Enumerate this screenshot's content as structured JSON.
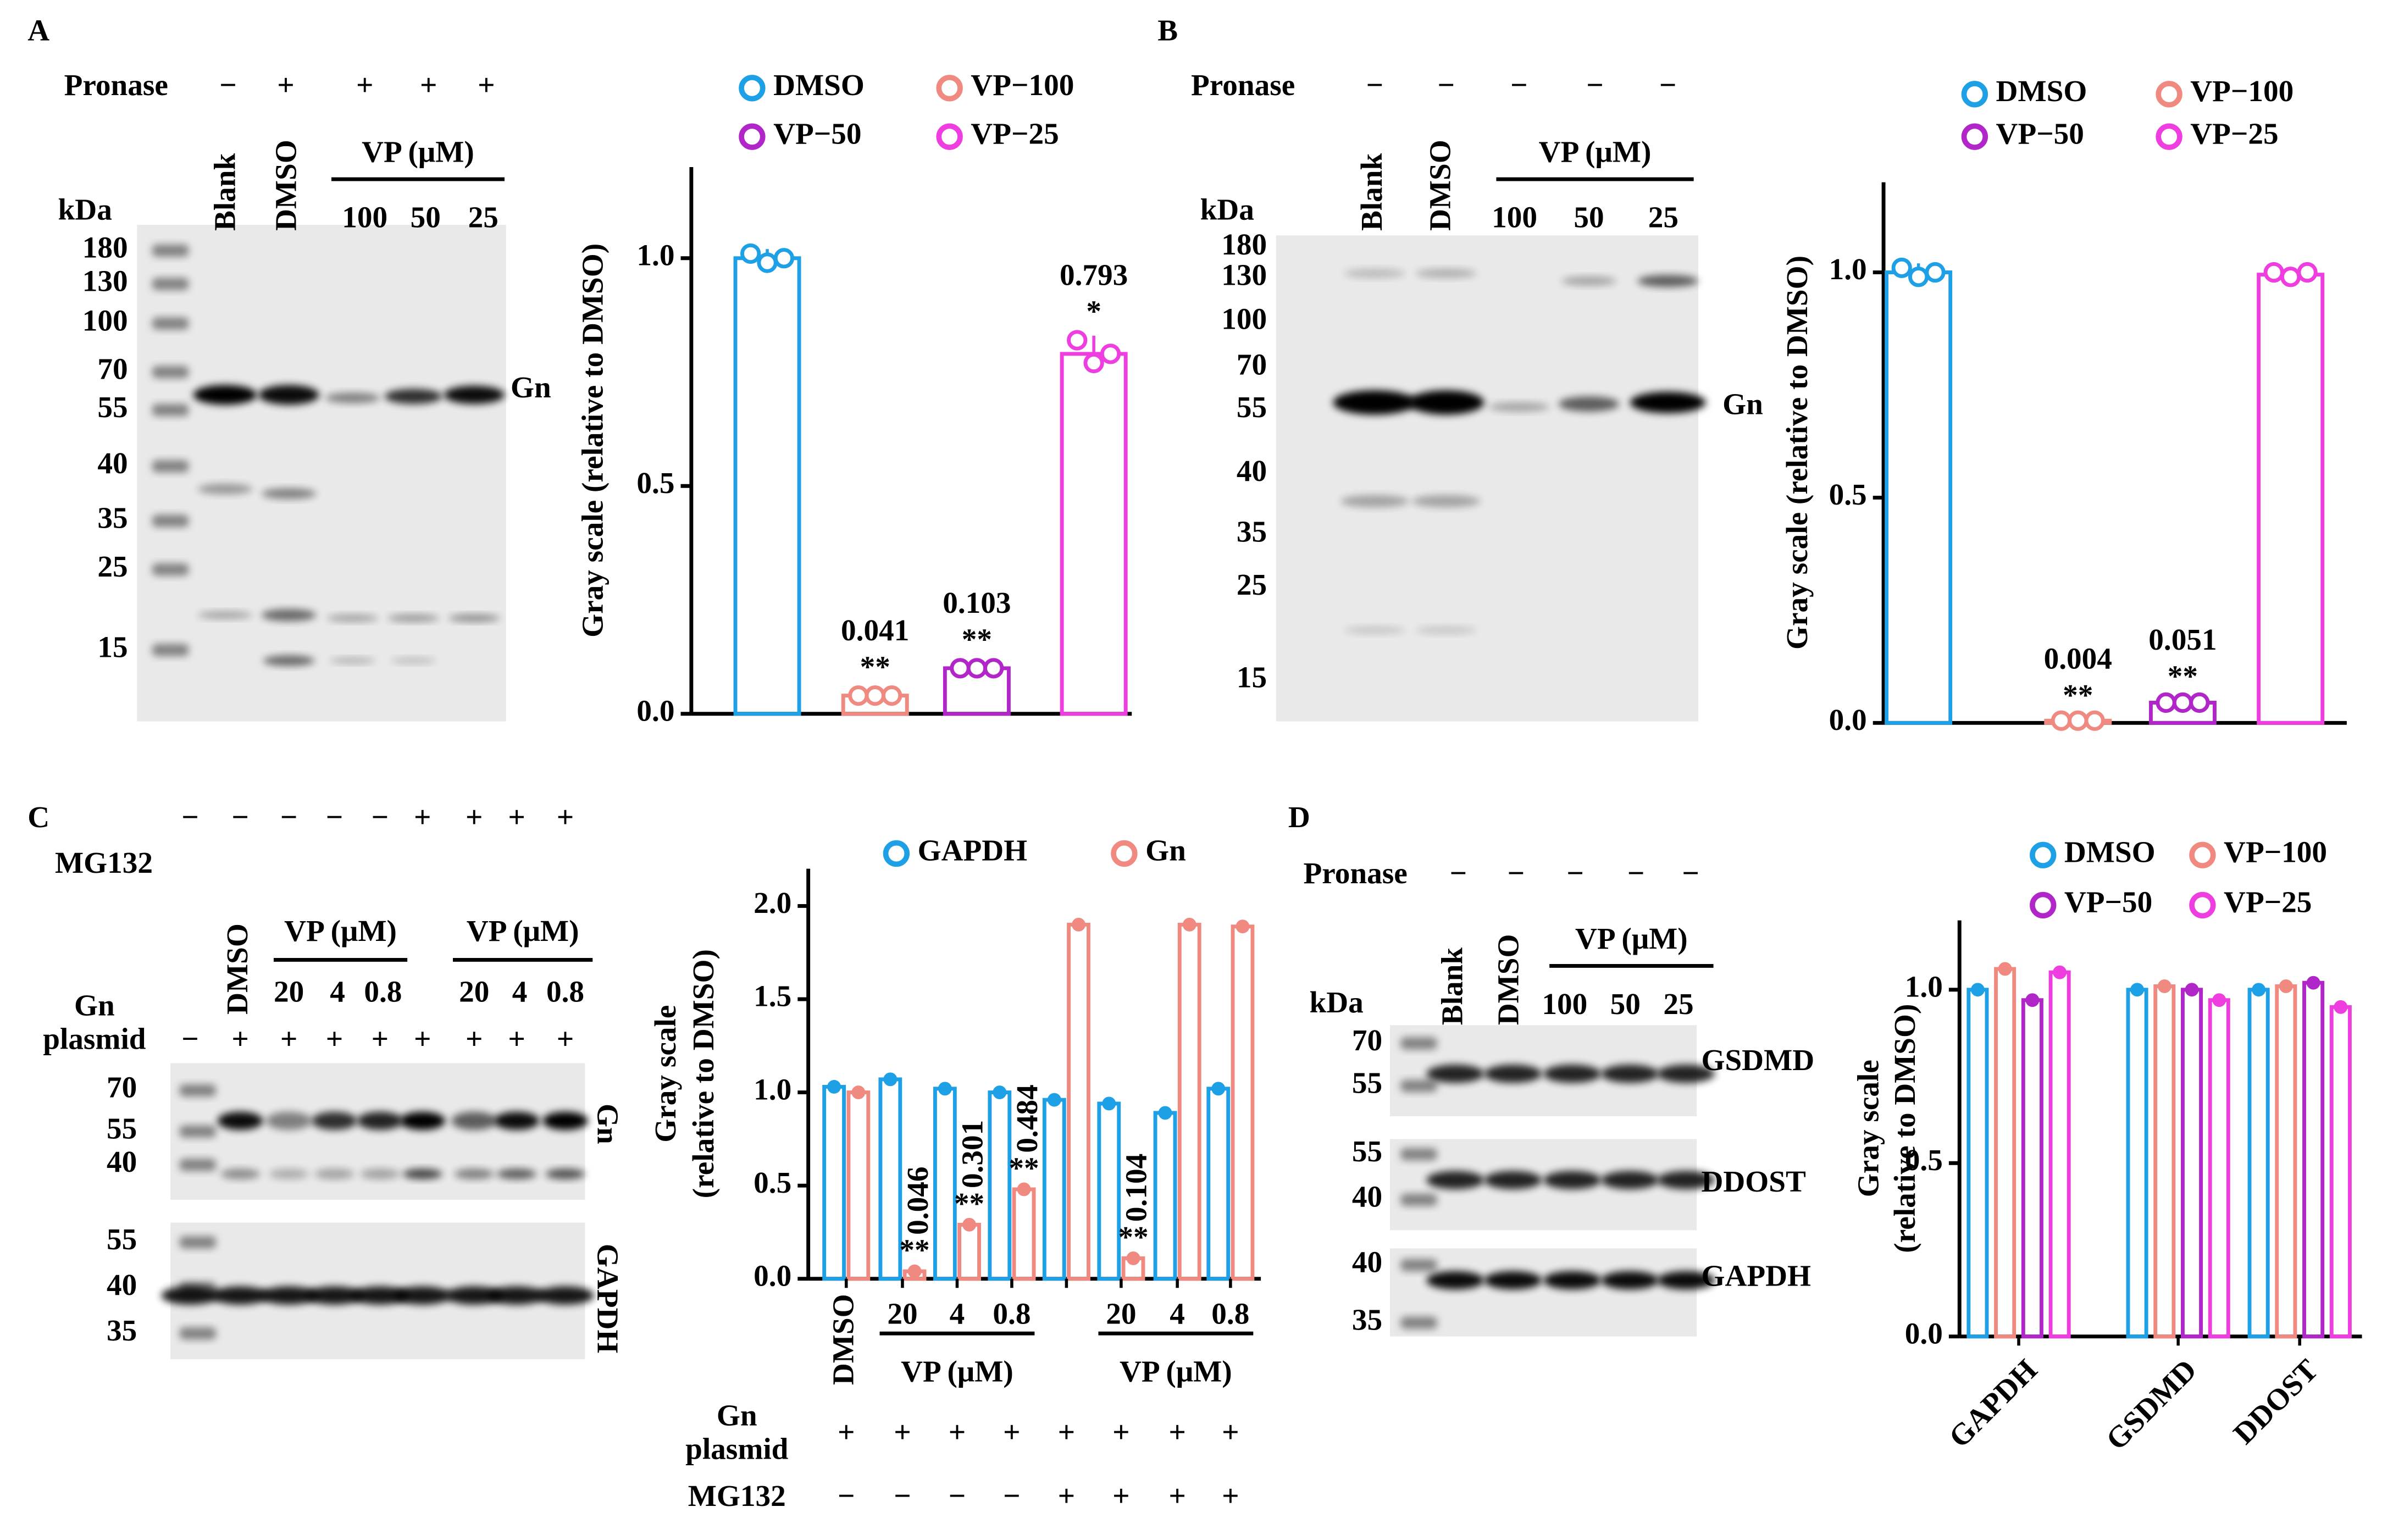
{
  "figure": {
    "panel_labels": [
      "A",
      "B",
      "C",
      "D"
    ],
    "A": {
      "pronase_label": "Pronase",
      "pronase": [
        "−",
        "+",
        "+",
        "+",
        "+"
      ],
      "lanes": [
        "Blank",
        "DMSO"
      ],
      "group": "VP (μM)",
      "doses": [
        "100",
        "50",
        "25"
      ],
      "unit": "kDa",
      "markers": [
        "180",
        "130",
        "100",
        "70",
        "55",
        "40",
        "35",
        "25",
        "15"
      ],
      "band": "Gn"
    },
    "B": {
      "pronase_label": "Pronase",
      "pronase": [
        "−",
        "−",
        "−",
        "−",
        "−"
      ],
      "lanes": [
        "Blank",
        "DMSO"
      ],
      "group": "VP (μM)",
      "doses": [
        "100",
        "50",
        "25"
      ],
      "unit": "kDa",
      "markers": [
        "180",
        "130",
        "100",
        "70",
        "55",
        "40",
        "35",
        "25",
        "15"
      ],
      "band": "Gn"
    },
    "C": {
      "mg132_label": "MG132",
      "mg132": [
        "−",
        "−",
        "−",
        "−",
        "−",
        "+",
        "+",
        "+",
        "+"
      ],
      "plasmid_label": [
        "Gn",
        "plasmid"
      ],
      "plasmid": [
        "−",
        "+",
        "+",
        "+",
        "+",
        "+",
        "+",
        "+",
        "+"
      ],
      "lane": "DMSO",
      "groups": [
        "VP (μM)",
        "VP (μM)"
      ],
      "doses": [
        "20",
        "4",
        "0.8",
        "20",
        "4",
        "0.8"
      ],
      "blots": [
        {
          "markers": [
            "70",
            "55",
            "40"
          ],
          "label": "Gn"
        },
        {
          "markers": [
            "55",
            "40",
            "35"
          ],
          "label": "GAPDH"
        }
      ]
    },
    "D": {
      "pronase_label": "Pronase",
      "pronase": [
        "−",
        "−",
        "−",
        "−",
        "−"
      ],
      "lanes": [
        "Blank",
        "DMSO"
      ],
      "group": "VP (μM)",
      "doses": [
        "100",
        "50",
        "25"
      ],
      "unit": "kDa",
      "blots": [
        {
          "markers": [
            "70",
            "55"
          ],
          "label": "GSDMD"
        },
        {
          "markers": [
            "55",
            "40"
          ],
          "label": "DDOST"
        },
        {
          "markers": [
            "40",
            "35"
          ],
          "label": "GAPDH"
        }
      ]
    }
  },
  "chart_data": [
    {
      "type": "bar",
      "ylabel": "Gray scale (relative to DMSO)",
      "categories": [
        "DMSO",
        "VP−100",
        "VP−50",
        "VP−25"
      ],
      "colors": [
        "#1ea0e6",
        "#f08a80",
        "#b026c8",
        "#ee3ee0"
      ],
      "values": [
        1.0,
        0.04,
        0.1,
        0.79
      ],
      "errors": [
        0.02,
        0.01,
        0.01,
        0.04
      ],
      "points": [
        [
          1.01,
          0.99,
          1.0
        ],
        [
          0.04,
          0.04,
          0.04
        ],
        [
          0.1,
          0.1,
          0.1
        ],
        [
          0.82,
          0.77,
          0.79
        ]
      ],
      "p_values": [
        null,
        "0.041",
        "0.103",
        "0.793"
      ],
      "stars": [
        null,
        "**",
        "**",
        "*"
      ],
      "ylim": [
        0,
        1.2
      ],
      "yticks": [
        {
          "value": 0,
          "label": "0.0"
        },
        {
          "value": 0.5,
          "label": "0.5"
        },
        {
          "value": 1,
          "label": "1.0"
        }
      ]
    },
    {
      "type": "bar",
      "ylabel": "Gray scale (relative to DMSO)",
      "categories": [
        "DMSO",
        "VP−100",
        "VP−50",
        "VP−25"
      ],
      "colors": [
        "#1ea0e6",
        "#f08a80",
        "#b026c8",
        "#ee3ee0"
      ],
      "values": [
        1.0,
        0.005,
        0.045,
        0.995
      ],
      "errors": [
        0.02,
        0.003,
        0.005,
        0.005
      ],
      "points": [
        [
          1.01,
          0.99,
          1.0
        ],
        [
          0.005,
          0.005,
          0.005
        ],
        [
          0.045,
          0.045,
          0.045
        ],
        [
          1.0,
          0.99,
          1.0
        ]
      ],
      "p_values": [
        null,
        "0.004",
        "0.051",
        null
      ],
      "stars": [
        null,
        "**",
        "**",
        null
      ],
      "ylim": [
        0,
        1.2
      ],
      "yticks": [
        {
          "value": 0,
          "label": "0.0"
        },
        {
          "value": 0.5,
          "label": "0.5"
        },
        {
          "value": 1,
          "label": "1.0"
        }
      ]
    },
    {
      "type": "grouped_bar",
      "ylabel": [
        "Gray scale",
        "(relative to DMSO)"
      ],
      "categories": [
        "DMSO",
        "20",
        "4",
        "0.8",
        null,
        "20",
        "4",
        "0.8"
      ],
      "series": [
        {
          "name": "GAPDH",
          "color": "#1ea0e6",
          "values": [
            1.03,
            1.07,
            1.02,
            1.0,
            0.96,
            0.94,
            0.89,
            1.02
          ]
        },
        {
          "name": "Gn",
          "color": "#f08a80",
          "values": [
            1.0,
            0.04,
            0.29,
            0.48,
            1.9,
            0.11,
            1.9,
            1.89
          ],
          "p_values": [
            null,
            "0.046",
            "0.301",
            "0.484",
            null,
            "0.104",
            null,
            null
          ],
          "stars": [
            null,
            "**",
            "**",
            "**",
            null,
            "**",
            null,
            null
          ]
        }
      ],
      "groups": [
        "VP (μM)",
        "VP (μM)"
      ],
      "rows": [
        {
          "label": [
            "Gn",
            "plasmid"
          ],
          "signs": [
            "+",
            "+",
            "+",
            "+",
            "+",
            "+",
            "+",
            "+"
          ]
        },
        {
          "label": [
            "MG132"
          ],
          "signs": [
            "−",
            "−",
            "−",
            "−",
            "+",
            "+",
            "+",
            "+"
          ]
        }
      ],
      "ylim": [
        0,
        2.2
      ],
      "yticks": [
        {
          "value": 0,
          "label": "0.0"
        },
        {
          "value": 0.5,
          "label": "0.5"
        },
        {
          "value": 1,
          "label": "1.0"
        },
        {
          "value": 1.5,
          "label": "1.5"
        },
        {
          "value": 2,
          "label": "2.0"
        }
      ]
    },
    {
      "type": "grouped_bar",
      "ylabel": [
        "Gray scale",
        "(relative to DMSO)"
      ],
      "categories": [
        "GAPDH",
        "GSDMD",
        "DDOST"
      ],
      "series": [
        {
          "name": "DMSO",
          "color": "#1ea0e6",
          "values": [
            1.0,
            1.0,
            1.0
          ]
        },
        {
          "name": "VP−100",
          "color": "#f08a80",
          "values": [
            1.06,
            1.01,
            1.01
          ]
        },
        {
          "name": "VP−50",
          "color": "#b026c8",
          "values": [
            0.97,
            1.0,
            1.02
          ]
        },
        {
          "name": "VP−25",
          "color": "#ee3ee0",
          "values": [
            1.05,
            0.97,
            0.95
          ]
        }
      ],
      "ylim": [
        0,
        1.2
      ],
      "yticks": [
        {
          "value": 0,
          "label": "0.0"
        },
        {
          "value": 0.5,
          "label": "0.5"
        },
        {
          "value": 1,
          "label": "1.0"
        }
      ]
    }
  ]
}
